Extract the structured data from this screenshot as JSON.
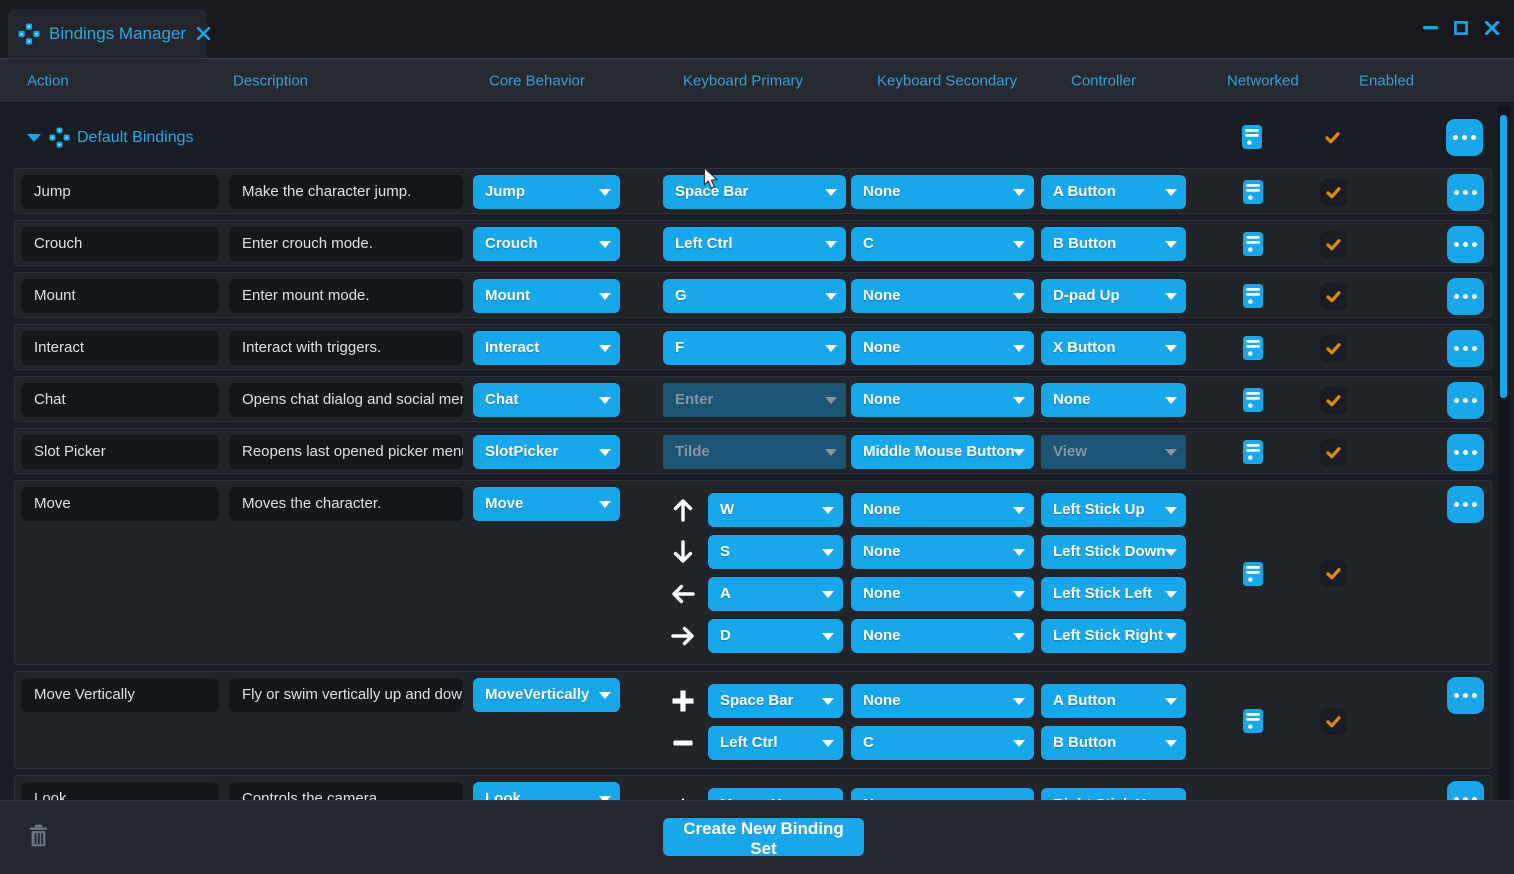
{
  "window": {
    "tab_title": "Bindings Manager"
  },
  "header": {
    "columns": [
      "Action",
      "Description",
      "Core Behavior",
      "Keyboard Primary",
      "Keyboard Secondary",
      "Controller",
      "Networked",
      "Enabled"
    ]
  },
  "group": {
    "label": "Default Bindings",
    "networked": true,
    "enabled": true
  },
  "rows": [
    {
      "type": "simple",
      "action": "Jump",
      "description": "Make the character jump.",
      "core": "Jump",
      "kb_primary": {
        "label": "Space Bar",
        "disabled": false
      },
      "kb_secondary": {
        "label": "None",
        "disabled": false
      },
      "controller": {
        "label": "A Button",
        "disabled": false
      },
      "networked": true,
      "enabled": true
    },
    {
      "type": "simple",
      "action": "Crouch",
      "description": "Enter crouch mode.",
      "core": "Crouch",
      "kb_primary": {
        "label": "Left Ctrl",
        "disabled": false
      },
      "kb_secondary": {
        "label": "C",
        "disabled": false
      },
      "controller": {
        "label": "B Button",
        "disabled": false
      },
      "networked": true,
      "enabled": true
    },
    {
      "type": "simple",
      "action": "Mount",
      "description": "Enter mount mode.",
      "core": "Mount",
      "kb_primary": {
        "label": "G",
        "disabled": false
      },
      "kb_secondary": {
        "label": "None",
        "disabled": false
      },
      "controller": {
        "label": "D-pad Up",
        "disabled": false
      },
      "networked": true,
      "enabled": true
    },
    {
      "type": "simple",
      "action": "Interact",
      "description": "Interact with triggers.",
      "core": "Interact",
      "kb_primary": {
        "label": "F",
        "disabled": false
      },
      "kb_secondary": {
        "label": "None",
        "disabled": false
      },
      "controller": {
        "label": "X Button",
        "disabled": false
      },
      "networked": true,
      "enabled": true
    },
    {
      "type": "simple",
      "action": "Chat",
      "description": "Opens chat dialog and social menu.",
      "core": "Chat",
      "kb_primary": {
        "label": "Enter",
        "disabled": true
      },
      "kb_secondary": {
        "label": "None",
        "disabled": false
      },
      "controller": {
        "label": "None",
        "disabled": false
      },
      "networked": true,
      "enabled": true
    },
    {
      "type": "simple",
      "action": "Slot Picker",
      "description": "Reopens last opened picker menu.",
      "core": "SlotPicker",
      "kb_primary": {
        "label": "Tilde",
        "disabled": true
      },
      "kb_secondary": {
        "label": "Middle Mouse Button",
        "disabled": false
      },
      "controller": {
        "label": "View",
        "disabled": true
      },
      "networked": true,
      "enabled": true
    },
    {
      "type": "multi",
      "action": "Move",
      "description": "Moves the character.",
      "core": "Move",
      "subs": [
        {
          "icon": "arrow-up",
          "kb": "W",
          "sec": "None",
          "ctrl": "Left Stick Up"
        },
        {
          "icon": "arrow-down",
          "kb": "S",
          "sec": "None",
          "ctrl": "Left Stick Down"
        },
        {
          "icon": "arrow-left",
          "kb": "A",
          "sec": "None",
          "ctrl": "Left Stick Left"
        },
        {
          "icon": "arrow-right",
          "kb": "D",
          "sec": "None",
          "ctrl": "Left Stick Right"
        }
      ],
      "networked": true,
      "enabled": true
    },
    {
      "type": "multi",
      "action": "Move Vertically",
      "description": "Fly or swim vertically up and down.",
      "core": "MoveVertically",
      "subs": [
        {
          "icon": "plus",
          "kb": "Space Bar",
          "sec": "None",
          "ctrl": "A Button"
        },
        {
          "icon": "minus",
          "kb": "Left Ctrl",
          "sec": "C",
          "ctrl": "B Button"
        }
      ],
      "networked": true,
      "enabled": true
    },
    {
      "type": "multi",
      "action": "Look",
      "description": "Controls the camera.",
      "core": "Look",
      "subs": [
        {
          "icon": "triangle-up",
          "kb": "Mouse Y",
          "sec": "None",
          "ctrl": "Right Stick Up"
        }
      ],
      "networked": false,
      "enabled": false
    }
  ],
  "footer": {
    "create_button_label": "Create New Binding Set"
  },
  "icons": {
    "tab": "dpad-cross",
    "group": "dpad-cross",
    "networked_column": "server",
    "enabled_column": "orange-check",
    "row_menu": "ellipsis",
    "delete": "trash",
    "window_controls": [
      "minimize",
      "maximize",
      "close"
    ]
  },
  "colors": {
    "accent_blue": "#18A7EA",
    "check_orange": "#E08A12",
    "disabled_dropdown_bg": "#1C5474",
    "row_bg": "#212429",
    "field_bg": "#14171C",
    "window_bg": "#1A1D23"
  }
}
